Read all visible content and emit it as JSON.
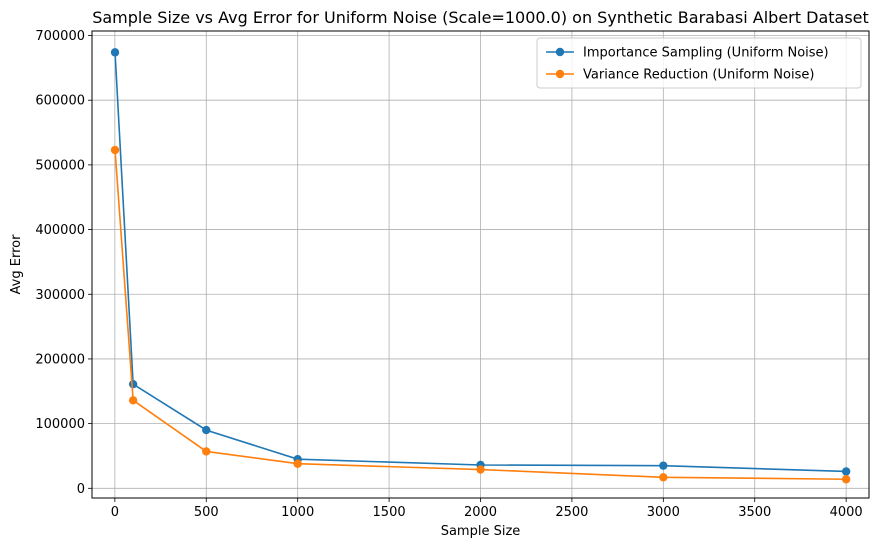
{
  "chart_data": {
    "type": "line",
    "title": "Sample Size vs Avg Error for Uniform Noise (Scale=1000.0) on Synthetic Barabasi Albert Dataset",
    "xlabel": "Sample Size",
    "ylabel": "Avg Error",
    "xlim": [
      -125,
      4125
    ],
    "ylim": [
      -15000,
      707000
    ],
    "xticks": [
      0,
      500,
      1000,
      1500,
      2000,
      2500,
      3000,
      3500,
      4000
    ],
    "yticks": [
      0,
      100000,
      200000,
      300000,
      400000,
      500000,
      600000,
      700000
    ],
    "xtick_labels": [
      "0",
      "500",
      "1000",
      "1500",
      "2000",
      "2500",
      "3000",
      "3500",
      "4000"
    ],
    "ytick_labels": [
      "0",
      "100000",
      "200000",
      "300000",
      "400000",
      "500000",
      "600000",
      "700000"
    ],
    "grid": true,
    "legend_position": "top-right",
    "series": [
      {
        "name": "Importance Sampling (Uniform Noise)",
        "color": "#1f77b4",
        "x": [
          1,
          100,
          500,
          1000,
          2000,
          3000,
          4000
        ],
        "y": [
          674000,
          161000,
          90000,
          45000,
          36000,
          35000,
          26000
        ]
      },
      {
        "name": "Variance Reduction (Uniform Noise)",
        "color": "#ff7f0e",
        "x": [
          1,
          100,
          500,
          1000,
          2000,
          3000,
          4000
        ],
        "y": [
          523000,
          136000,
          57000,
          38000,
          29000,
          17000,
          14000
        ]
      }
    ]
  }
}
